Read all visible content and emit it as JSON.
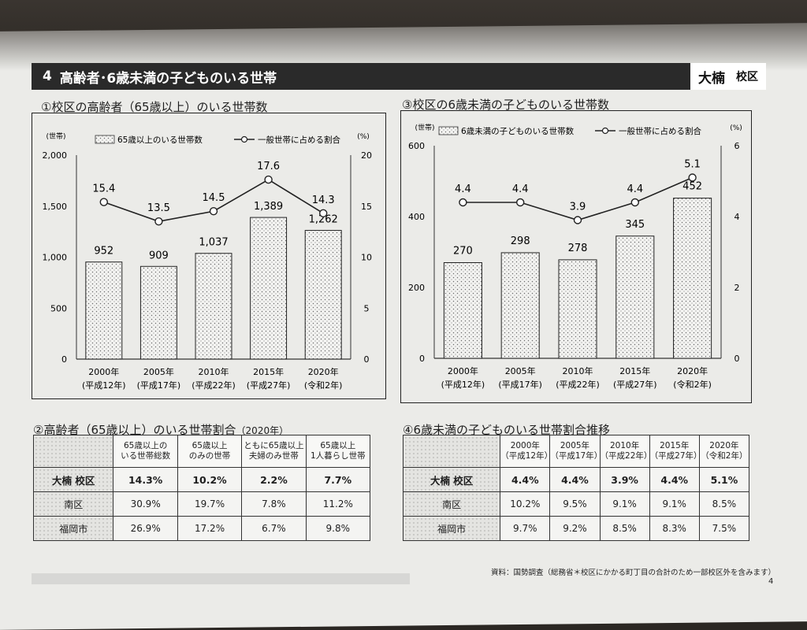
{
  "header": {
    "number": "4",
    "title": "高齢者･6歳未満の子どものいる世帯",
    "district": "大楠",
    "district_suffix": "校区"
  },
  "chart1": {
    "title": "①校区の高齢者（65歳以上）のいる世帯数",
    "y_unit": "(世帯)",
    "y2_unit": "(%)",
    "legend_bar": "65歳以上のいる世帯数",
    "legend_line": "一般世帯に占める割合"
  },
  "chart2": {
    "title": "③校区の6歳未満の子どものいる世帯数",
    "y_unit": "(世帯)",
    "y2_unit": "(%)",
    "legend_bar": "6歳未満の子どものいる世帯数",
    "legend_line": "一般世帯に占める割合"
  },
  "chart_data": [
    {
      "type": "bar",
      "categories": [
        "2000年\n(平成12年)",
        "2005年\n(平成17年)",
        "2010年\n(平成22年)",
        "2015年\n(平成27年)",
        "2020年\n(令和2年)"
      ],
      "series": [
        {
          "name": "65歳以上のいる世帯数",
          "values": [
            952,
            909,
            1037,
            1389,
            1262
          ],
          "axis": "left"
        },
        {
          "name": "一般世帯に占める割合",
          "type": "line",
          "values": [
            15.4,
            13.5,
            14.5,
            17.6,
            14.3
          ],
          "axis": "right"
        }
      ],
      "yticks": [
        "0",
        "500",
        "1,000",
        "1,500",
        "2,000"
      ],
      "ylim": [
        0,
        2000
      ],
      "y2ticks": [
        "0",
        "5",
        "10",
        "15",
        "20"
      ],
      "y2lim": [
        0,
        20
      ],
      "bar_labels": [
        "952",
        "909",
        "1,037",
        "1,389",
        "1,262"
      ],
      "line_labels": [
        "15.4",
        "13.5",
        "14.5",
        "17.6",
        "14.3"
      ]
    },
    {
      "type": "bar",
      "categories": [
        "2000年\n(平成12年)",
        "2005年\n(平成17年)",
        "2010年\n(平成22年)",
        "2015年\n(平成27年)",
        "2020年\n(令和2年)"
      ],
      "series": [
        {
          "name": "6歳未満の子どものいる世帯数",
          "values": [
            270,
            298,
            278,
            345,
            452
          ],
          "axis": "left"
        },
        {
          "name": "一般世帯に占める割合",
          "type": "line",
          "values": [
            4.4,
            4.4,
            3.9,
            4.4,
            5.1
          ],
          "axis": "right"
        }
      ],
      "yticks": [
        "0",
        "200",
        "400",
        "600"
      ],
      "ylim": [
        0,
        600
      ],
      "y2ticks": [
        "0",
        "2",
        "4",
        "6"
      ],
      "y2lim": [
        0,
        6
      ],
      "bar_labels": [
        "270",
        "298",
        "278",
        "345",
        "452"
      ],
      "line_labels": [
        "4.4",
        "4.4",
        "3.9",
        "4.4",
        "5.1"
      ]
    }
  ],
  "table1": {
    "title": "②高齢者（65歳以上）のいる世帯割合",
    "title_sub": "（2020年）",
    "headers": [
      "65歳以上の\nいる世帯総数",
      "65歳以上\nのみの世帯",
      "ともに65歳以上\n夫婦のみ世帯",
      "65歳以上\n1人暮らし世帯"
    ],
    "rows": [
      {
        "label": "大楠 校区",
        "values": [
          "14.3%",
          "10.2%",
          "2.2%",
          "7.7%"
        ]
      },
      {
        "label": "南区",
        "values": [
          "30.9%",
          "19.7%",
          "7.8%",
          "11.2%"
        ]
      },
      {
        "label": "福岡市",
        "values": [
          "26.9%",
          "17.2%",
          "6.7%",
          "9.8%"
        ]
      }
    ]
  },
  "table2": {
    "title": "④6歳未満の子どものいる世帯割合推移",
    "headers": [
      "2000年\n（平成12年）",
      "2005年\n（平成17年）",
      "2010年\n（平成22年）",
      "2015年\n（平成27年）",
      "2020年\n（令和2年）"
    ],
    "rows": [
      {
        "label": "大楠 校区",
        "values": [
          "4.4%",
          "4.4%",
          "3.9%",
          "4.4%",
          "5.1%"
        ]
      },
      {
        "label": "南区",
        "values": [
          "10.2%",
          "9.5%",
          "9.1%",
          "9.1%",
          "8.5%"
        ]
      },
      {
        "label": "福岡市",
        "values": [
          "9.7%",
          "9.2%",
          "8.5%",
          "8.3%",
          "7.5%"
        ]
      }
    ]
  },
  "footer": {
    "source": "資料：国勢調査（総務省＊校区にかかる町丁目の合計のため一部校区外を含みます）",
    "page": "4"
  }
}
